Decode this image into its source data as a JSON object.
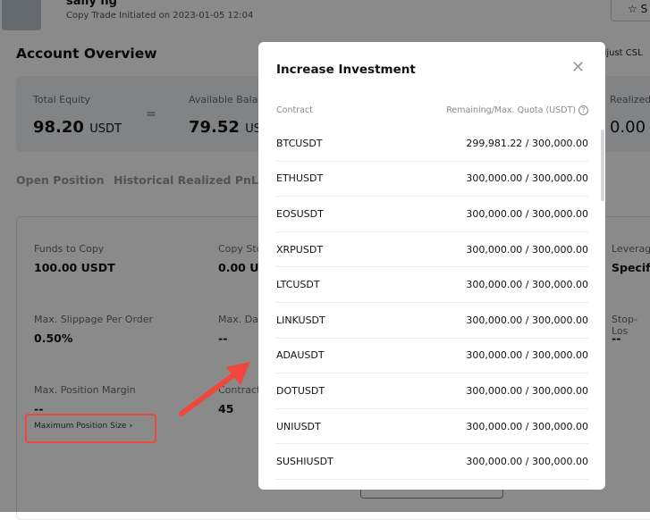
{
  "header": {
    "name": "sally ng",
    "initiated": "Copy Trade Initiated on 2023-01-05 12:04",
    "star_button": "S",
    "adjust": "djust CSL"
  },
  "overview": {
    "title": "Account Overview",
    "total_equity_label": "Total Equity",
    "total_equity": "98.20",
    "unit": "USDT",
    "equals": "=",
    "available_label": "Available Balan",
    "available": "79.52",
    "realized_label": "Realized",
    "realized": "0.00"
  },
  "tabs": [
    "Open Position",
    "Historical Realized PnL"
  ],
  "settings": {
    "funds_label": "Funds to Copy",
    "funds": "100.00 USDT",
    "copystop_label": "Copy Sto",
    "copystop": "0.00 US",
    "leverage_label": "Leverage",
    "leverage": "Specifie",
    "slippage_label": "Max. Slippage Per Order",
    "slippage": "0.50%",
    "maxdaily_label": "Max. Dai",
    "maxdaily": "--",
    "stoploss_label": "Stop-Los",
    "stoploss": "--",
    "margin_label": "Max. Position Margin",
    "margin": "--",
    "contracts_label": "Contract",
    "contracts": "45",
    "max_position_size": "Maximum Position Size",
    "chevron": "›"
  },
  "annotation_color": "#f0463c",
  "modal": {
    "title": "Increase Investment",
    "close": "✕",
    "col_contract": "Contract",
    "col_quota": "Remaining/Max. Quota (USDT)",
    "help": "?",
    "rows": [
      {
        "contract": "BTCUSDT",
        "quota": "299,981.22 / 300,000.00"
      },
      {
        "contract": "ETHUSDT",
        "quota": "300,000.00 / 300,000.00"
      },
      {
        "contract": "EOSUSDT",
        "quota": "300,000.00 / 300,000.00"
      },
      {
        "contract": "XRPUSDT",
        "quota": "300,000.00 / 300,000.00"
      },
      {
        "contract": "LTCUSDT",
        "quota": "300,000.00 / 300,000.00"
      },
      {
        "contract": "LINKUSDT",
        "quota": "300,000.00 / 300,000.00"
      },
      {
        "contract": "ADAUSDT",
        "quota": "300,000.00 / 300,000.00"
      },
      {
        "contract": "DOTUSDT",
        "quota": "300,000.00 / 300,000.00"
      },
      {
        "contract": "UNIUSDT",
        "quota": "300,000.00 / 300,000.00"
      },
      {
        "contract": "SUSHIUSDT",
        "quota": "300,000.00 / 300,000.00"
      }
    ]
  }
}
